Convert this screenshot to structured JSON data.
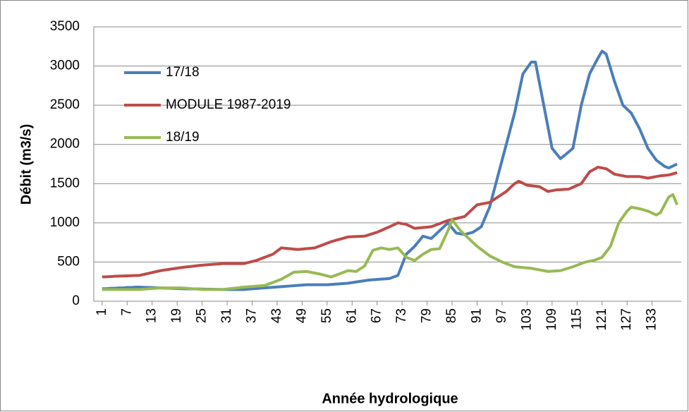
{
  "chart_data": {
    "type": "line",
    "x_label": "Année hydrologique",
    "y_label": "Débit (m3/s)",
    "x": [
      1,
      2,
      3,
      4,
      5,
      6,
      7,
      8,
      9,
      10,
      11,
      12,
      13,
      14,
      15,
      16,
      17,
      18,
      19,
      20,
      21,
      22,
      23,
      24,
      25,
      26,
      27,
      28,
      29,
      30,
      31,
      32,
      33,
      34,
      35,
      36,
      37,
      38,
      39,
      40,
      41,
      42,
      43,
      44,
      45,
      46,
      47,
      48,
      49,
      50,
      51,
      52,
      53,
      54,
      55,
      56,
      57,
      58,
      59,
      60,
      61,
      62,
      63,
      64,
      65,
      66,
      67,
      68,
      69,
      70,
      71,
      72,
      73,
      74,
      75,
      76,
      77,
      78,
      79,
      80,
      81,
      82,
      83,
      84,
      85,
      86,
      87,
      88,
      89,
      90,
      91,
      92,
      93,
      94,
      95,
      96,
      97,
      98,
      99,
      100,
      101,
      102,
      103,
      104,
      105,
      106,
      107,
      108,
      109,
      110,
      111,
      112,
      113,
      114,
      115,
      116,
      117,
      118,
      119,
      120,
      121,
      122,
      123,
      124,
      125,
      126,
      127,
      128,
      129,
      130,
      131,
      132,
      133,
      134,
      135,
      136,
      137,
      138,
      139
    ],
    "xlim": [
      -1,
      140
    ],
    "xticks": [
      1,
      7,
      13,
      19,
      25,
      31,
      37,
      43,
      49,
      55,
      61,
      67,
      73,
      79,
      85,
      91,
      97,
      103,
      109,
      115,
      121,
      127,
      133
    ],
    "ylim": [
      0,
      3500
    ],
    "yticks": [
      0,
      500,
      1000,
      1500,
      2000,
      2500,
      3000,
      3500
    ],
    "grid": true,
    "legend": "upper-left",
    "series": [
      {
        "name": "17/18",
        "color": "#4a7ebb",
        "values": [
          160,
          160,
          165,
          165,
          170,
          170,
          175,
          175,
          180,
          180,
          178,
          176,
          174,
          172,
          170,
          168,
          166,
          164,
          162,
          160,
          159,
          158,
          157,
          156,
          155,
          154,
          153,
          152,
          151,
          150,
          150,
          150,
          150,
          150,
          150,
          154,
          158,
          162,
          166,
          170,
          174,
          178,
          182,
          186,
          190,
          194,
          198,
          202,
          206,
          210,
          210,
          210,
          210,
          210,
          210,
          214,
          218,
          222,
          226,
          230,
          238,
          246,
          254,
          262,
          270,
          274,
          278,
          282,
          286,
          290,
          310,
          330,
          465,
          600,
          650,
          700,
          765,
          830,
          815,
          800,
          850,
          900,
          950,
          1000,
          935,
          870,
          860,
          850,
          865,
          880,
          915,
          950,
          1075,
          1200,
          1400,
          1600,
          1800,
          2000,
          2200,
          2400,
          2650,
          2900,
          2975,
          3050,
          3050,
          2775,
          2500,
          2225,
          1950,
          1885,
          1820,
          1860,
          1905,
          1950,
          2225,
          2500,
          2700,
          2900,
          3000,
          3100,
          3190,
          3150,
          2975,
          2800,
          2650,
          2500,
          2450,
          2400,
          2300,
          2200,
          2075,
          1950,
          1875,
          1800,
          1760,
          1720,
          1700,
          1725,
          1750
        ]
      },
      {
        "name": "MODULE 1987-2019",
        "color": "#be4b48",
        "values": [
          310,
          312,
          315,
          318,
          320,
          322,
          324,
          326,
          328,
          330,
          342,
          354,
          366,
          378,
          390,
          398,
          406,
          414,
          422,
          430,
          436,
          442,
          448,
          454,
          460,
          464,
          468,
          472,
          476,
          480,
          480,
          480,
          480,
          480,
          480,
          493,
          507,
          520,
          540,
          560,
          580,
          600,
          640,
          680,
          675,
          670,
          665,
          660,
          665,
          670,
          675,
          680,
          700,
          720,
          740,
          760,
          775,
          790,
          805,
          820,
          823,
          825,
          828,
          830,
          847,
          863,
          880,
          903,
          927,
          950,
          975,
          1000,
          990,
          980,
          955,
          930,
          935,
          940,
          945,
          950,
          970,
          990,
          1010,
          1030,
          1043,
          1055,
          1068,
          1080,
          1130,
          1180,
          1230,
          1240,
          1250,
          1260,
          1295,
          1330,
          1365,
          1400,
          1450,
          1500,
          1530,
          1505,
          1480,
          1473,
          1467,
          1460,
          1430,
          1400,
          1410,
          1420,
          1423,
          1427,
          1430,
          1453,
          1477,
          1500,
          1575,
          1650,
          1680,
          1710,
          1700,
          1690,
          1655,
          1620,
          1610,
          1600,
          1590,
          1590,
          1590,
          1590,
          1580,
          1570,
          1580,
          1590,
          1600,
          1605,
          1610,
          1625,
          1640
        ]
      },
      {
        "name": "18/19",
        "color": "#98b954",
        "values": [
          150,
          150,
          150,
          150,
          150,
          150,
          150,
          150,
          150,
          150,
          154,
          158,
          162,
          166,
          170,
          170,
          170,
          170,
          170,
          170,
          166,
          162,
          158,
          154,
          150,
          150,
          150,
          150,
          150,
          150,
          156,
          162,
          168,
          174,
          180,
          184,
          188,
          192,
          196,
          200,
          220,
          240,
          260,
          280,
          310,
          340,
          370,
          373,
          377,
          380,
          370,
          360,
          350,
          337,
          323,
          310,
          330,
          350,
          370,
          390,
          385,
          380,
          415,
          450,
          550,
          650,
          665,
          680,
          670,
          660,
          670,
          680,
          620,
          560,
          540,
          520,
          560,
          600,
          630,
          660,
          665,
          670,
          785,
          900,
          1040,
          970,
          900,
          850,
          800,
          750,
          700,
          660,
          620,
          580,
          553,
          527,
          500,
          480,
          460,
          440,
          435,
          430,
          425,
          420,
          410,
          400,
          390,
          380,
          383,
          387,
          390,
          407,
          423,
          440,
          460,
          480,
          500,
          510,
          520,
          540,
          560,
          630,
          700,
          850,
          1000,
          1075,
          1150,
          1200,
          1190,
          1180,
          1165,
          1150,
          1125,
          1100,
          1130,
          1230,
          1330,
          1360,
          1230
        ]
      }
    ]
  }
}
